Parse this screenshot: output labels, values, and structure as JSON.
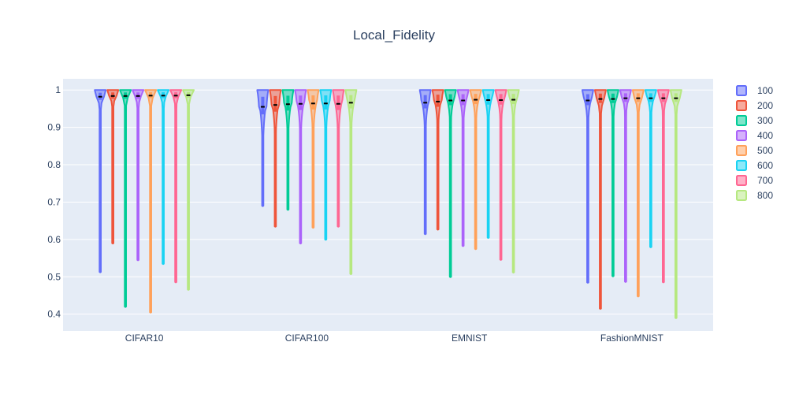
{
  "chart_data": {
    "type": "violin",
    "title": "Local_Fidelity",
    "xlabel": "",
    "ylabel": "",
    "categories": [
      "CIFAR10",
      "CIFAR100",
      "EMNIST",
      "FashionMNIST"
    ],
    "yticks": [
      0.4,
      0.5,
      0.6,
      0.7,
      0.8,
      0.9,
      1
    ],
    "yticklabels": [
      "0.4",
      "0.5",
      "0.6",
      "0.7",
      "0.8",
      "0.9",
      "1"
    ],
    "ylim": [
      0.355,
      1.03
    ],
    "grid": true,
    "legend_position": "right",
    "series": [
      {
        "name": "100",
        "color": "#636efa",
        "min": [
          0.513,
          0.69,
          0.615,
          0.485
        ],
        "median": [
          0.982,
          0.955,
          0.966,
          0.972
        ]
      },
      {
        "name": "200",
        "color": "#EF553B",
        "min": [
          0.59,
          0.635,
          0.627,
          0.415
        ],
        "median": [
          0.984,
          0.96,
          0.969,
          0.976
        ]
      },
      {
        "name": "300",
        "color": "#00cc96",
        "min": [
          0.42,
          0.68,
          0.5,
          0.502
        ],
        "median": [
          0.984,
          0.962,
          0.972,
          0.976
        ]
      },
      {
        "name": "400",
        "color": "#ab63fa",
        "min": [
          0.545,
          0.59,
          0.583,
          0.487
        ],
        "median": [
          0.984,
          0.963,
          0.972,
          0.978
        ]
      },
      {
        "name": "500",
        "color": "#FFA15A",
        "min": [
          0.405,
          0.632,
          0.575,
          0.448
        ],
        "median": [
          0.985,
          0.964,
          0.974,
          0.978
        ]
      },
      {
        "name": "600",
        "color": "#19d3f3",
        "min": [
          0.535,
          0.6,
          0.605,
          0.58
        ],
        "median": [
          0.985,
          0.964,
          0.973,
          0.978
        ]
      },
      {
        "name": "700",
        "color": "#FF6692",
        "min": [
          0.486,
          0.635,
          0.546,
          0.486
        ],
        "median": [
          0.985,
          0.963,
          0.973,
          0.978
        ]
      },
      {
        "name": "800",
        "color": "#B6E880",
        "min": [
          0.466,
          0.508,
          0.512,
          0.39
        ],
        "median": [
          0.986,
          0.966,
          0.974,
          0.978
        ]
      }
    ]
  }
}
